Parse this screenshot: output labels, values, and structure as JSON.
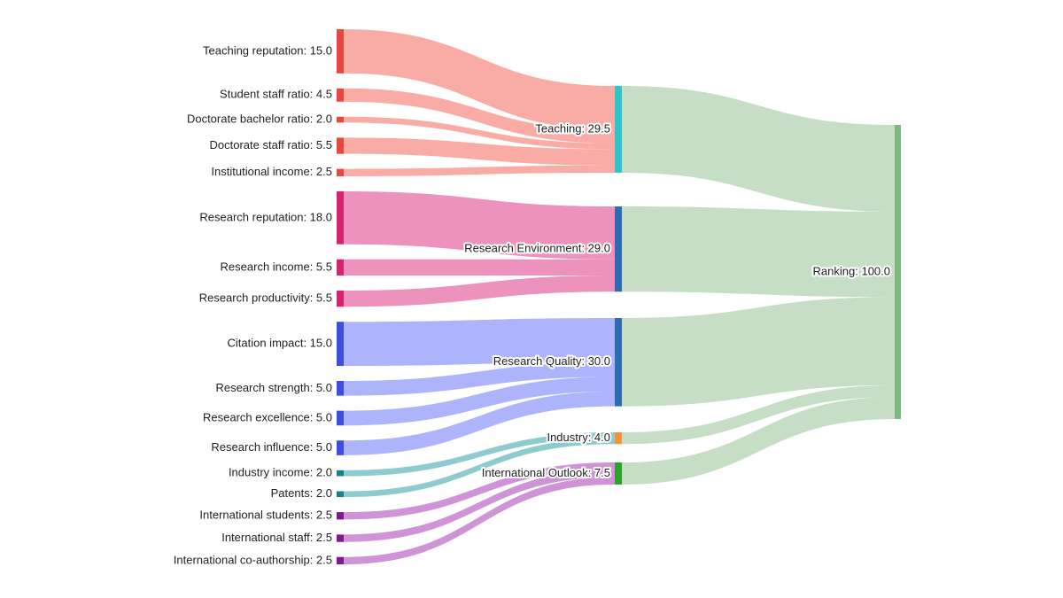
{
  "chart_data": {
    "type": "sankey",
    "nodes": [
      {
        "label": "Teaching reputation: 15.0",
        "value": 15.0,
        "color": "#e8473f"
      },
      {
        "label": "Student staff ratio: 4.5",
        "value": 4.5,
        "color": "#e8473f"
      },
      {
        "label": "Doctorate bachelor ratio: 2.0",
        "value": 2.0,
        "color": "#e8473f"
      },
      {
        "label": "Doctorate staff ratio: 5.5",
        "value": 5.5,
        "color": "#e8473f"
      },
      {
        "label": "Institutional income: 2.5",
        "value": 2.5,
        "color": "#e8473f"
      },
      {
        "label": "Research reputation: 18.0",
        "value": 18.0,
        "color": "#d4246f"
      },
      {
        "label": "Research income: 5.5",
        "value": 5.5,
        "color": "#d4246f"
      },
      {
        "label": "Research productivity: 5.5",
        "value": 5.5,
        "color": "#d4246f"
      },
      {
        "label": "Citation impact: 15.0",
        "value": 15.0,
        "color": "#3d4de0"
      },
      {
        "label": "Research strength: 5.0",
        "value": 5.0,
        "color": "#3d4de0"
      },
      {
        "label": "Research excellence: 5.0",
        "value": 5.0,
        "color": "#3d4de0"
      },
      {
        "label": "Research influence: 5.0",
        "value": 5.0,
        "color": "#3d4de0"
      },
      {
        "label": "Industry income: 2.0",
        "value": 2.0,
        "color": "#1b8087"
      },
      {
        "label": "Patents: 2.0",
        "value": 2.0,
        "color": "#1b8087"
      },
      {
        "label": "International students: 2.5",
        "value": 2.5,
        "color": "#7d1a8c"
      },
      {
        "label": "International staff: 2.5",
        "value": 2.5,
        "color": "#7d1a8c"
      },
      {
        "label": "International co-authorship: 2.5",
        "value": 2.5,
        "color": "#7d1a8c"
      },
      {
        "label": "Teaching: 29.5",
        "value": 29.5,
        "color": "#2ec4c8"
      },
      {
        "label": "Research Environment: 29.0",
        "value": 29.0,
        "color": "#2c6bb0"
      },
      {
        "label": "Research Quality: 30.0",
        "value": 30.0,
        "color": "#2c6bb0"
      },
      {
        "label": "Industry: 4.0",
        "value": 4.0,
        "color": "#f0963a"
      },
      {
        "label": "International Outlook: 7.5",
        "value": 7.5,
        "color": "#2ca02c"
      },
      {
        "label": "Ranking: 100.0",
        "value": 100.0,
        "color": "#80b87f"
      }
    ],
    "links": [
      {
        "source": 0,
        "target": 17,
        "value": 15.0,
        "color": "rgba(246,128,116,0.65)"
      },
      {
        "source": 1,
        "target": 17,
        "value": 4.5,
        "color": "rgba(246,128,116,0.65)"
      },
      {
        "source": 2,
        "target": 17,
        "value": 2.0,
        "color": "rgba(246,128,116,0.65)"
      },
      {
        "source": 3,
        "target": 17,
        "value": 5.5,
        "color": "rgba(246,128,116,0.65)"
      },
      {
        "source": 4,
        "target": 17,
        "value": 2.5,
        "color": "rgba(246,128,116,0.65)"
      },
      {
        "source": 5,
        "target": 18,
        "value": 18.0,
        "color": "rgba(230,100,160,0.7)"
      },
      {
        "source": 6,
        "target": 18,
        "value": 5.5,
        "color": "rgba(230,100,160,0.7)"
      },
      {
        "source": 7,
        "target": 18,
        "value": 5.5,
        "color": "rgba(230,100,160,0.7)"
      },
      {
        "source": 8,
        "target": 19,
        "value": 15.0,
        "color": "rgba(130,140,250,0.65)"
      },
      {
        "source": 9,
        "target": 19,
        "value": 5.0,
        "color": "rgba(130,140,250,0.65)"
      },
      {
        "source": 10,
        "target": 19,
        "value": 5.0,
        "color": "rgba(130,140,250,0.65)"
      },
      {
        "source": 11,
        "target": 19,
        "value": 5.0,
        "color": "rgba(130,140,250,0.65)"
      },
      {
        "source": 12,
        "target": 20,
        "value": 2.0,
        "color": "rgba(80,175,180,0.65)"
      },
      {
        "source": 13,
        "target": 20,
        "value": 2.0,
        "color": "rgba(80,175,180,0.65)"
      },
      {
        "source": 14,
        "target": 21,
        "value": 2.5,
        "color": "rgba(180,90,190,0.65)"
      },
      {
        "source": 15,
        "target": 21,
        "value": 2.5,
        "color": "rgba(180,90,190,0.65)"
      },
      {
        "source": 16,
        "target": 21,
        "value": 2.5,
        "color": "rgba(180,90,190,0.65)"
      },
      {
        "source": 17,
        "target": 22,
        "value": 29.5,
        "color": "rgba(160,200,160,0.6)"
      },
      {
        "source": 18,
        "target": 22,
        "value": 29.0,
        "color": "rgba(160,200,160,0.6)"
      },
      {
        "source": 19,
        "target": 22,
        "value": 30.0,
        "color": "rgba(160,200,160,0.6)"
      },
      {
        "source": 20,
        "target": 22,
        "value": 4.0,
        "color": "rgba(160,200,160,0.6)"
      },
      {
        "source": 21,
        "target": 22,
        "value": 7.5,
        "color": "rgba(160,200,160,0.6)"
      }
    ]
  }
}
